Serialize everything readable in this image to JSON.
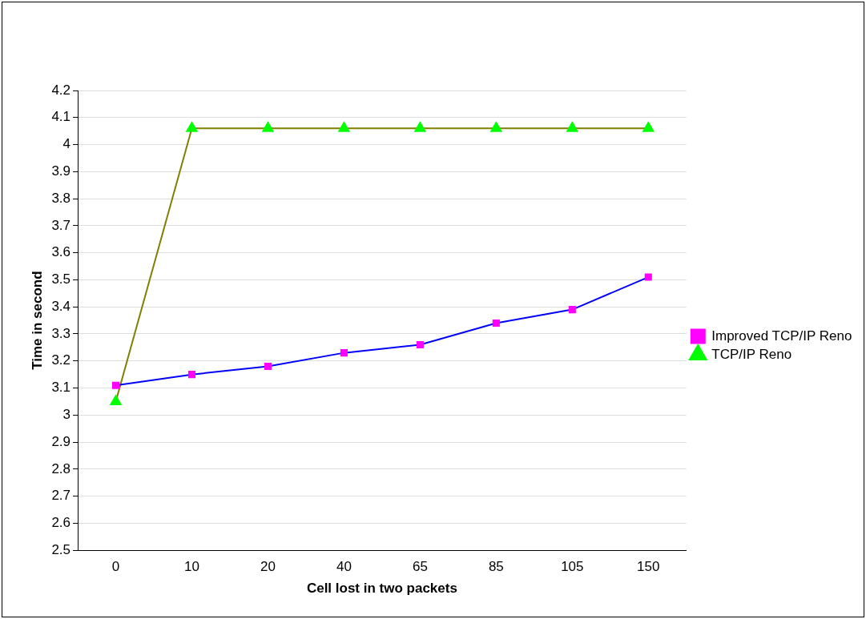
{
  "chart_data": {
    "type": "line",
    "xlabel": "Cell lost in two packets",
    "ylabel": "Time in second",
    "categories": [
      "0",
      "10",
      "20",
      "40",
      "65",
      "85",
      "105",
      "150"
    ],
    "series": [
      {
        "name": "Improved TCP/IP Reno",
        "color": "#0000ff",
        "marker": "square",
        "values": [
          3.11,
          3.15,
          3.18,
          3.23,
          3.26,
          3.34,
          3.39,
          3.51
        ]
      },
      {
        "name": "TCP/IP Reno",
        "color": "#808000",
        "marker": "triangle",
        "values": [
          3.05,
          4.06,
          4.06,
          4.06,
          4.06,
          4.06,
          4.06,
          4.06
        ]
      }
    ],
    "ylim": [
      2.5,
      4.2
    ],
    "yticks": [
      2.5,
      2.6,
      2.7,
      2.8,
      2.9,
      3,
      3.1,
      3.2,
      3.3,
      3.4,
      3.5,
      3.6,
      3.7,
      3.8,
      3.9,
      4,
      4.1,
      4.2
    ],
    "grid": "y",
    "legend": "right",
    "line_style": "solid"
  }
}
